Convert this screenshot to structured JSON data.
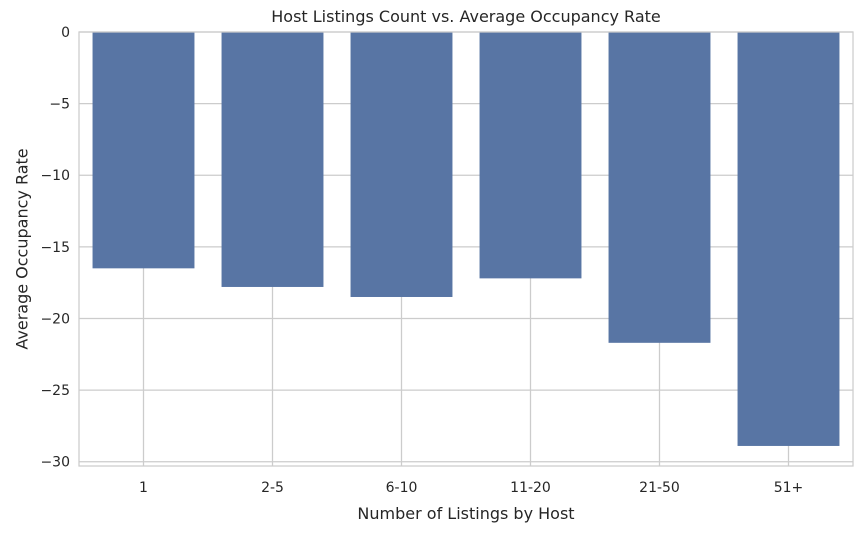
{
  "chart_data": {
    "type": "bar",
    "title": "Host Listings Count vs. Average Occupancy Rate",
    "xlabel": "Number of Listings by Host",
    "ylabel": "Average Occupancy Rate",
    "categories": [
      "1",
      "2-5",
      "6-10",
      "11-20",
      "21-50",
      "51+"
    ],
    "values": [
      -16.5,
      -17.8,
      -18.5,
      -17.2,
      -21.7,
      -28.9
    ],
    "ylim": [
      -30.3,
      0
    ],
    "yticks": [
      0,
      -5,
      -10,
      -15,
      -20,
      -25,
      -30
    ],
    "ytick_labels": [
      "0",
      "−5",
      "−10",
      "−15",
      "−20",
      "−25",
      "−30"
    ],
    "grid": true,
    "bar_color": "#5875a4",
    "grid_color": "#cccccc",
    "background": "#ffffff"
  }
}
